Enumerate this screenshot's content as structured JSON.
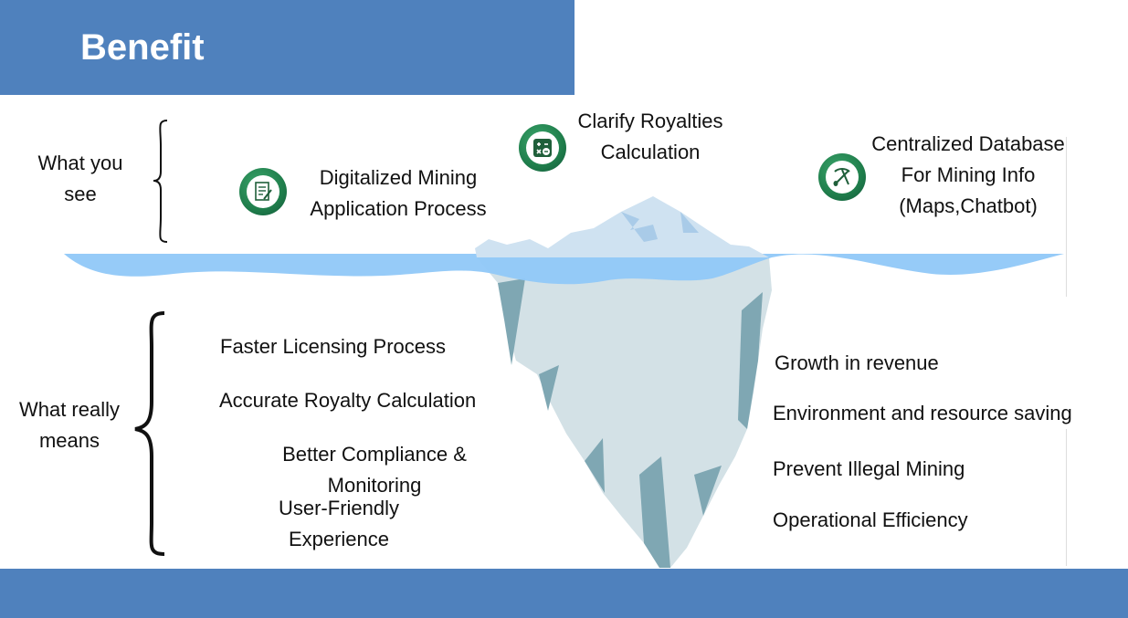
{
  "header": {
    "title": "Benefit"
  },
  "visible_section": {
    "label": "What you see",
    "items": [
      {
        "text": "Digitalized Mining Application Process",
        "icon": "document-pen-icon"
      },
      {
        "text": "Clarify Royalties Calculation",
        "icon": "calculator-icon"
      },
      {
        "text": "Centralized Database For Mining Info (Maps,Chatbot)",
        "icon": "pickaxe-shovel-icon"
      }
    ]
  },
  "hidden_section": {
    "label": "What really means",
    "left_items": [
      "Faster Licensing Process",
      "Accurate Royalty Calculation",
      "Better Compliance & Monitoring",
      "User-Friendly Experience"
    ],
    "right_items": [
      "Growth in revenue",
      "Environment and resource saving",
      "Prevent Illegal Mining",
      "Operational Efficiency"
    ]
  },
  "colors": {
    "bar_blue": "#4f81bd",
    "water": "#90c8f8",
    "iceberg_top": "#cfe2f1",
    "iceberg_bottom": "#d3e1e6",
    "iceberg_shadow": "#7fa7b3",
    "icon_green": "#1f7d4b"
  }
}
